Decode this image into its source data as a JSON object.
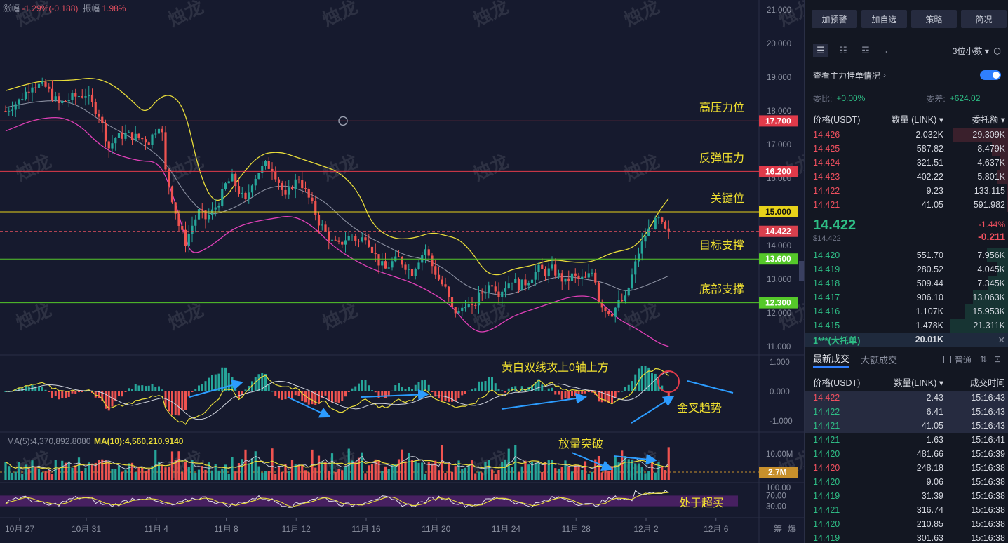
{
  "header": {
    "change_label": "涨幅",
    "change_value": "-1.29%(-0.188)",
    "amplitude_label": "振幅",
    "amplitude_value": "1.98%"
  },
  "watermark": "烛龙",
  "colors": {
    "up": "#26a69a",
    "down": "#ef5350",
    "resistance": "#e03a4a",
    "key": "#e8d21a",
    "support": "#55c82a",
    "text_annot": "#f0e030",
    "arrow": "#2c9cff",
    "bg": "#161a2e"
  },
  "chart_data": [
    {
      "type": "candlestick",
      "x_ticks": [
        "10月 27",
        "10月 31",
        "11月 4",
        "11月 8",
        "11月 12",
        "11月 16",
        "11月 20",
        "11月 24",
        "11月 28",
        "12月 2",
        "12月 6"
      ],
      "y_ticks": [
        "21.000",
        "20.000",
        "19.000",
        "18.000",
        "17.000",
        "16.000",
        "15.000",
        "14.000",
        "13.000",
        "12.000",
        "11.000"
      ],
      "ylim": [
        11.0,
        21.0
      ],
      "current_price": "14.422",
      "levels": [
        {
          "label": "高压力位",
          "value": "17.700",
          "kind": "resistance"
        },
        {
          "label": "反弹压力",
          "value": "16.200",
          "kind": "resistance"
        },
        {
          "label": "关键位",
          "value": "15.000",
          "kind": "key"
        },
        {
          "label": "目标支撑",
          "value": "13.600",
          "kind": "support"
        },
        {
          "label": "底部支撑",
          "value": "12.300",
          "kind": "support"
        }
      ],
      "price_path": [
        [
          0,
          18.0
        ],
        [
          4,
          18.3
        ],
        [
          8,
          18.8
        ],
        [
          12,
          18.7
        ],
        [
          16,
          18.2
        ],
        [
          20,
          18.4
        ],
        [
          24,
          18.5
        ],
        [
          28,
          17.9
        ],
        [
          31,
          16.9
        ],
        [
          33,
          17.2
        ],
        [
          36,
          17.3
        ],
        [
          40,
          17.2
        ],
        [
          43,
          17.1
        ],
        [
          46,
          17.6
        ],
        [
          47,
          17.3
        ],
        [
          48,
          16.2
        ],
        [
          50,
          15.4
        ],
        [
          52,
          14.6
        ],
        [
          54,
          14.1
        ],
        [
          56,
          14.6
        ],
        [
          58,
          15.0
        ],
        [
          60,
          14.8
        ],
        [
          62,
          15.0
        ],
        [
          64,
          15.3
        ],
        [
          66,
          15.8
        ],
        [
          68,
          16.0
        ],
        [
          70,
          15.6
        ],
        [
          72,
          15.3
        ],
        [
          74,
          15.9
        ],
        [
          76,
          16.2
        ],
        [
          78,
          16.4
        ],
        [
          80,
          16.3
        ],
        [
          82,
          15.9
        ],
        [
          84,
          15.4
        ],
        [
          86,
          15.8
        ],
        [
          88,
          16.0
        ],
        [
          90,
          15.6
        ],
        [
          92,
          15.2
        ],
        [
          94,
          14.7
        ],
        [
          96,
          14.4
        ],
        [
          98,
          14.1
        ],
        [
          100,
          14.0
        ],
        [
          102,
          14.2
        ],
        [
          104,
          14.3
        ],
        [
          106,
          14.1
        ],
        [
          108,
          14.3
        ],
        [
          110,
          13.9
        ],
        [
          112,
          13.5
        ],
        [
          114,
          13.3
        ],
        [
          116,
          13.5
        ],
        [
          118,
          13.6
        ],
        [
          120,
          13.4
        ],
        [
          122,
          13.2
        ],
        [
          124,
          13.6
        ],
        [
          126,
          13.9
        ],
        [
          128,
          13.4
        ],
        [
          130,
          13.0
        ],
        [
          132,
          12.7
        ],
        [
          134,
          12.1
        ],
        [
          136,
          12.0
        ],
        [
          138,
          12.3
        ],
        [
          140,
          12.1
        ],
        [
          142,
          12.5
        ],
        [
          144,
          12.7
        ],
        [
          146,
          12.9
        ],
        [
          148,
          12.6
        ],
        [
          150,
          12.8
        ],
        [
          152,
          13.0
        ],
        [
          154,
          12.8
        ],
        [
          156,
          12.9
        ],
        [
          158,
          13.1
        ],
        [
          160,
          13.3
        ],
        [
          162,
          13.2
        ],
        [
          164,
          13.3
        ],
        [
          166,
          13.1
        ],
        [
          168,
          12.9
        ],
        [
          170,
          13.1
        ],
        [
          172,
          13.0
        ],
        [
          174,
          13.0
        ],
        [
          176,
          13.2
        ],
        [
          177,
          13.0
        ],
        [
          178,
          12.4
        ],
        [
          180,
          12.1
        ],
        [
          182,
          12.0
        ],
        [
          184,
          12.3
        ],
        [
          186,
          12.4
        ],
        [
          188,
          13.1
        ],
        [
          190,
          13.8
        ],
        [
          192,
          14.3
        ],
        [
          194,
          14.6
        ],
        [
          196,
          14.75
        ],
        [
          198,
          14.422
        ]
      ],
      "bollinger_upper": [
        [
          0,
          18.6
        ],
        [
          10,
          18.9
        ],
        [
          20,
          18.9
        ],
        [
          26,
          19.0
        ],
        [
          32,
          18.8
        ],
        [
          38,
          18.3
        ],
        [
          42,
          17.9
        ],
        [
          46,
          18.4
        ],
        [
          50,
          18.5
        ],
        [
          54,
          18.0
        ],
        [
          58,
          16.2
        ],
        [
          62,
          15.3
        ],
        [
          66,
          15.4
        ],
        [
          70,
          16.0
        ],
        [
          76,
          16.7
        ],
        [
          82,
          16.8
        ],
        [
          88,
          16.6
        ],
        [
          94,
          16.4
        ],
        [
          100,
          16.2
        ],
        [
          106,
          15.6
        ],
        [
          110,
          14.6
        ],
        [
          116,
          14.2
        ],
        [
          122,
          14.2
        ],
        [
          128,
          14.4
        ],
        [
          132,
          14.3
        ],
        [
          136,
          14.2
        ],
        [
          140,
          13.8
        ],
        [
          144,
          13.2
        ],
        [
          148,
          13.1
        ],
        [
          152,
          13.3
        ],
        [
          158,
          13.4
        ],
        [
          164,
          13.6
        ],
        [
          170,
          13.5
        ],
        [
          176,
          13.5
        ],
        [
          182,
          13.8
        ],
        [
          188,
          13.9
        ],
        [
          192,
          14.3
        ],
        [
          196,
          15.0
        ],
        [
          199,
          15.4
        ]
      ],
      "bollinger_mid": [
        [
          0,
          18.1
        ],
        [
          10,
          18.3
        ],
        [
          20,
          18.3
        ],
        [
          30,
          17.6
        ],
        [
          40,
          17.1
        ],
        [
          48,
          16.5
        ],
        [
          54,
          15.5
        ],
        [
          60,
          14.9
        ],
        [
          66,
          15.0
        ],
        [
          72,
          15.3
        ],
        [
          78,
          15.7
        ],
        [
          84,
          15.8
        ],
        [
          90,
          15.6
        ],
        [
          96,
          15.3
        ],
        [
          102,
          14.7
        ],
        [
          108,
          14.3
        ],
        [
          114,
          14.0
        ],
        [
          120,
          13.7
        ],
        [
          126,
          13.6
        ],
        [
          132,
          13.3
        ],
        [
          138,
          12.8
        ],
        [
          144,
          12.6
        ],
        [
          150,
          12.5
        ],
        [
          156,
          12.7
        ],
        [
          162,
          13.0
        ],
        [
          168,
          13.1
        ],
        [
          174,
          13.0
        ],
        [
          180,
          12.9
        ],
        [
          186,
          12.6
        ],
        [
          192,
          12.8
        ],
        [
          199,
          13.1
        ]
      ],
      "bollinger_lower": [
        [
          0,
          17.4
        ],
        [
          10,
          17.8
        ],
        [
          20,
          17.8
        ],
        [
          30,
          16.8
        ],
        [
          40,
          16.5
        ],
        [
          46,
          16.5
        ],
        [
          50,
          15.6
        ],
        [
          54,
          14.2
        ],
        [
          56,
          13.7
        ],
        [
          62,
          14.0
        ],
        [
          68,
          14.5
        ],
        [
          74,
          14.7
        ],
        [
          80,
          14.8
        ],
        [
          86,
          14.9
        ],
        [
          92,
          14.6
        ],
        [
          98,
          14.0
        ],
        [
          104,
          13.6
        ],
        [
          110,
          13.3
        ],
        [
          116,
          13.1
        ],
        [
          122,
          12.9
        ],
        [
          128,
          12.6
        ],
        [
          134,
          12.2
        ],
        [
          138,
          11.7
        ],
        [
          142,
          11.4
        ],
        [
          146,
          11.5
        ],
        [
          152,
          11.9
        ],
        [
          158,
          12.1
        ],
        [
          164,
          12.3
        ],
        [
          170,
          12.5
        ],
        [
          176,
          12.5
        ],
        [
          180,
          12.2
        ],
        [
          184,
          11.8
        ],
        [
          190,
          11.5
        ],
        [
          196,
          11.1
        ],
        [
          199,
          11.0
        ]
      ]
    },
    {
      "type": "macd",
      "y_ticks": [
        "1.000",
        "0.000",
        "-1.000"
      ],
      "ylim": [
        -1.0,
        1.0
      ]
    },
    {
      "type": "bar",
      "name": "volume",
      "ma5_label": "MA(5):4,370,892.8080",
      "ma10_label": "MA(10):4,560,210.9140",
      "y_ticks": [
        "10.00M"
      ],
      "current_volume": "2.7M"
    },
    {
      "type": "line",
      "name": "oscillator",
      "y_ticks": [
        "100.00",
        "70.00",
        "30.00"
      ],
      "ylim": [
        0,
        100
      ]
    }
  ],
  "annotations": {
    "macd": "黄白双线攻上0轴上方",
    "golden_cross": "金叉趋势",
    "volume": "放量突破",
    "overbought": "处于超买"
  },
  "axis_footer": [
    "筹",
    "爆"
  ],
  "panel": {
    "buttons": [
      "加预警",
      "加自选",
      "策略",
      "简况"
    ],
    "decimals": "3位小数",
    "main_orders": "查看主力挂单情况",
    "ratio_label": "委比:",
    "ratio_value": "+0.00%",
    "diff_label": "委差:",
    "diff_value": "+624.02",
    "col_price": "价格(USDT)",
    "col_qty": "数量 (LINK)",
    "col_total": "委托额",
    "asks": [
      {
        "price": "14.426",
        "qty": "2.032K",
        "total": "29.309K",
        "depth": 0.95
      },
      {
        "price": "14.425",
        "qty": "587.82",
        "total": "8.479K",
        "depth": 0.28
      },
      {
        "price": "14.424",
        "qty": "321.51",
        "total": "4.637K",
        "depth": 0.15
      },
      {
        "price": "14.423",
        "qty": "402.22",
        "total": "5.801K",
        "depth": 0.19
      },
      {
        "price": "14.422",
        "qty": "9.23",
        "total": "133.115",
        "depth": 0.01
      },
      {
        "price": "14.421",
        "qty": "41.05",
        "total": "591.982",
        "depth": 0.02
      }
    ],
    "last_price": "14.422",
    "last_price_usd": "$14.422",
    "change_pct": "-1.44%",
    "change_abs": "-0.211",
    "bids": [
      {
        "price": "14.420",
        "qty": "551.70",
        "total": "7.956K",
        "depth": 0.37
      },
      {
        "price": "14.419",
        "qty": "280.52",
        "total": "4.045K",
        "depth": 0.19
      },
      {
        "price": "14.418",
        "qty": "509.44",
        "total": "7.345K",
        "depth": 0.34
      },
      {
        "price": "14.417",
        "qty": "906.10",
        "total": "13.063K",
        "depth": 0.61
      },
      {
        "price": "14.416",
        "qty": "1.107K",
        "total": "15.953K",
        "depth": 0.75
      },
      {
        "price": "14.415",
        "qty": "1.478K",
        "total": "21.311K",
        "depth": 1.0
      }
    ],
    "big_order_label": "1***(大托单)",
    "big_order_value": "20.01K",
    "tab_latest": "最新成交",
    "tab_large": "大额成交",
    "normal_label": "普通",
    "trade_col_price": "价格(USDT)",
    "trade_col_qty": "数量(LINK)",
    "trade_col_time": "成交时间",
    "trades": [
      {
        "price": "14.422",
        "qty": "2.43",
        "time": "15:16:43",
        "side": "sell"
      },
      {
        "price": "14.422",
        "qty": "6.41",
        "time": "15:16:43",
        "side": "buy"
      },
      {
        "price": "14.421",
        "qty": "41.05",
        "time": "15:16:43",
        "side": "buy"
      },
      {
        "price": "14.421",
        "qty": "1.63",
        "time": "15:16:41",
        "side": "buy"
      },
      {
        "price": "14.420",
        "qty": "481.66",
        "time": "15:16:39",
        "side": "buy"
      },
      {
        "price": "14.420",
        "qty": "248.18",
        "time": "15:16:38",
        "side": "sell"
      },
      {
        "price": "14.420",
        "qty": "9.06",
        "time": "15:16:38",
        "side": "buy"
      },
      {
        "price": "14.419",
        "qty": "31.39",
        "time": "15:16:38",
        "side": "buy"
      },
      {
        "price": "14.421",
        "qty": "316.74",
        "time": "15:16:38",
        "side": "buy"
      },
      {
        "price": "14.420",
        "qty": "210.85",
        "time": "15:16:38",
        "side": "buy"
      },
      {
        "price": "14.419",
        "qty": "301.63",
        "time": "15:16:38",
        "side": "buy"
      }
    ]
  }
}
